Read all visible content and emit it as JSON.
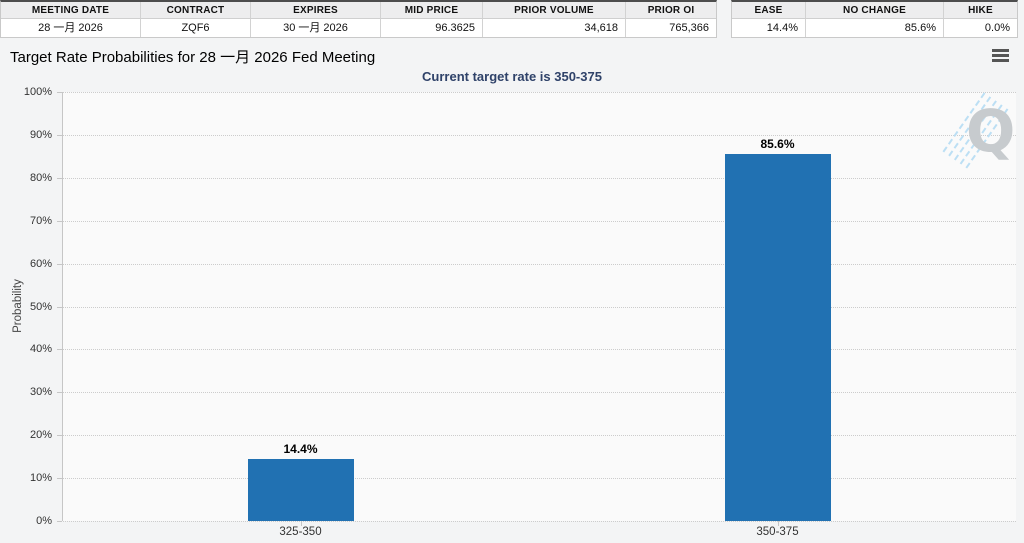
{
  "tables": {
    "contract": {
      "columns": [
        {
          "label": "MEETING DATE",
          "value": "28 一月 2026"
        },
        {
          "label": "CONTRACT",
          "value": "ZQF6"
        },
        {
          "label": "EXPIRES",
          "value": "30 一月 2026"
        },
        {
          "label": "MID PRICE",
          "value": "96.3625"
        },
        {
          "label": "PRIOR VOLUME",
          "value": "34,618"
        },
        {
          "label": "PRIOR OI",
          "value": "765,366"
        }
      ]
    },
    "probabilities": {
      "columns": [
        {
          "label": "EASE",
          "value": "14.4%"
        },
        {
          "label": "NO CHANGE",
          "value": "85.6%"
        },
        {
          "label": "HIKE",
          "value": "0.0%"
        }
      ]
    }
  },
  "chart_data": {
    "type": "bar",
    "title": "Target Rate Probabilities for 28 一月 2026 Fed Meeting",
    "subtitle": "Current target rate is 350-375",
    "categories": [
      "325-350",
      "350-375"
    ],
    "values": [
      14.4,
      85.6
    ],
    "value_labels": [
      "14.4%",
      "85.6%"
    ],
    "xlabel": "",
    "ylabel": "Probability",
    "ylim": [
      0,
      100
    ],
    "yticks": [
      "0%",
      "10%",
      "20%",
      "30%",
      "40%",
      "50%",
      "60%",
      "70%",
      "80%",
      "90%",
      "100%"
    ],
    "grid": "dotted",
    "legend": "none",
    "bar_color": "#2171b2",
    "subtitle_color": "#2f4269"
  },
  "watermark": {
    "letter": "Q"
  }
}
